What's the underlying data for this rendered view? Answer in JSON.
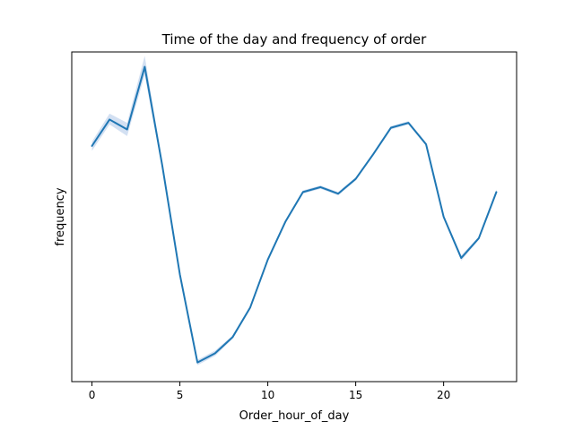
{
  "chart_data": {
    "type": "line",
    "title": "Time of the day and frequency of order",
    "xlabel": "Order_hour_of_day",
    "ylabel": "frequency",
    "xlim": [
      -1.15,
      24.15
    ],
    "ylim": [
      0,
      100
    ],
    "xticks": [
      0,
      5,
      10,
      15,
      20
    ],
    "y_tick_labels_shown": false,
    "grid": false,
    "legend": "none",
    "line_color": "#1f77b4",
    "band_color": "#aec7e8",
    "series": [
      {
        "x": [
          0,
          1,
          2,
          3,
          4,
          5,
          6,
          7,
          8,
          9,
          10,
          11,
          12,
          13,
          14,
          15,
          16,
          17,
          18,
          19,
          20,
          21,
          22,
          23
        ],
        "y": [
          71.5,
          79.5,
          76.5,
          95.5,
          65.5,
          32.5,
          5.8,
          8.6,
          13.5,
          22.5,
          37,
          48.5,
          57.5,
          59,
          57,
          61.5,
          69,
          77,
          78.5,
          72,
          50,
          37.5,
          43.5,
          57.5
        ],
        "ci_low": [
          70,
          78,
          74.5,
          93,
          64.5,
          32,
          5,
          7.8,
          13,
          22,
          36.5,
          48,
          57,
          58.5,
          56.5,
          61,
          68.5,
          76.5,
          78,
          71.5,
          49.5,
          36.7,
          43,
          57
        ],
        "ci_high": [
          72.8,
          81.3,
          78.5,
          98.8,
          66.5,
          33,
          6.6,
          9.4,
          14,
          23,
          37.5,
          49,
          58,
          59.5,
          57.5,
          62,
          69.5,
          77.5,
          79,
          72.5,
          50.5,
          38.3,
          44,
          58.3
        ]
      }
    ]
  }
}
